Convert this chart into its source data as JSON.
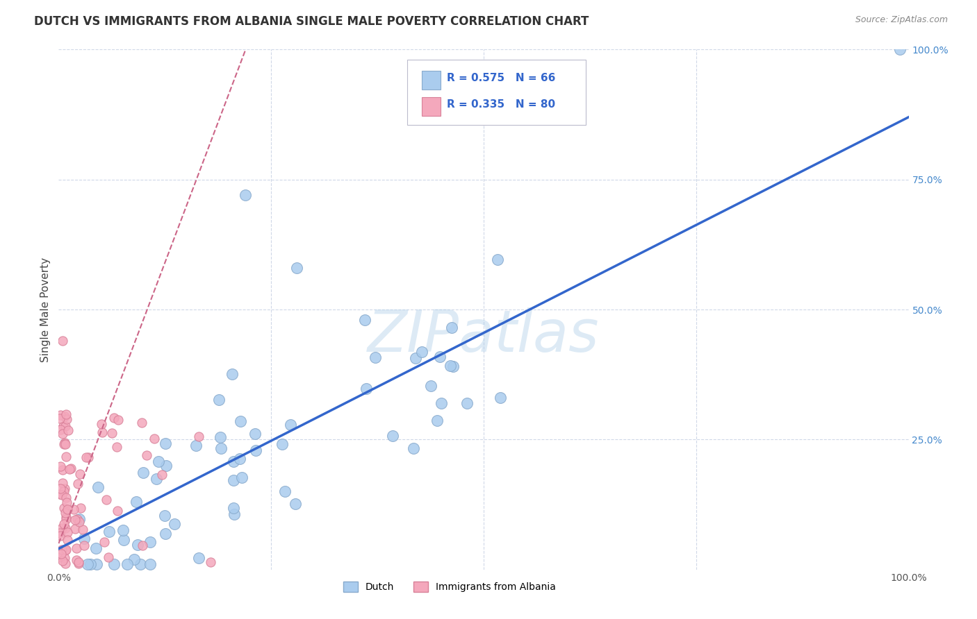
{
  "title": "DUTCH VS IMMIGRANTS FROM ALBANIA SINGLE MALE POVERTY CORRELATION CHART",
  "source": "Source: ZipAtlas.com",
  "ylabel": "Single Male Poverty",
  "background_color": "#ffffff",
  "watermark": "ZIPatlas",
  "watermark_color": "#aacce8",
  "grid_color": "#d0d8e8",
  "dutch_color": "#aaccee",
  "dutch_edge_color": "#88aacc",
  "albania_color": "#f4a8bc",
  "albania_edge_color": "#d88098",
  "regression_dutch_color": "#3366cc",
  "regression_albania_color": "#cc6688",
  "r_dutch": 0.575,
  "n_dutch": 66,
  "r_albania": 0.335,
  "n_albania": 80,
  "legend_R_N_color": "#3366cc",
  "right_tick_color": "#4488cc",
  "title_color": "#333333",
  "source_color": "#888888",
  "ylabel_color": "#444444"
}
